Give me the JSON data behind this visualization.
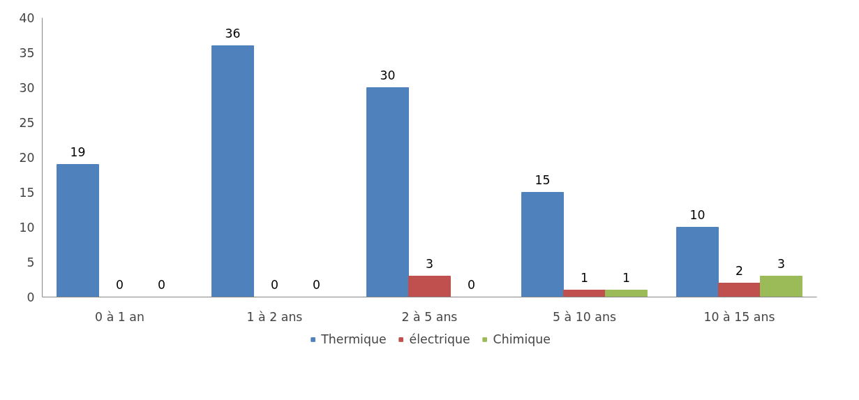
{
  "chart_data": {
    "type": "bar",
    "categories": [
      "0 à 1 an",
      "1 à 2 ans",
      "2 à 5 ans",
      "5 à 10 ans",
      "10 à 15 ans"
    ],
    "series": [
      {
        "name": "Thermique",
        "color": "#4f81bd",
        "values": [
          19,
          36,
          30,
          15,
          10
        ]
      },
      {
        "name": "électrique",
        "color": "#c0504d",
        "values": [
          0,
          0,
          3,
          1,
          2
        ]
      },
      {
        "name": "Chimique",
        "color": "#9bbb59",
        "values": [
          0,
          0,
          0,
          1,
          3
        ]
      }
    ],
    "ylim": [
      0,
      40
    ],
    "yticks": [
      0,
      5,
      10,
      15,
      20,
      25,
      30,
      35,
      40
    ],
    "grid": false,
    "legend": "bottom",
    "data_labels": true
  }
}
